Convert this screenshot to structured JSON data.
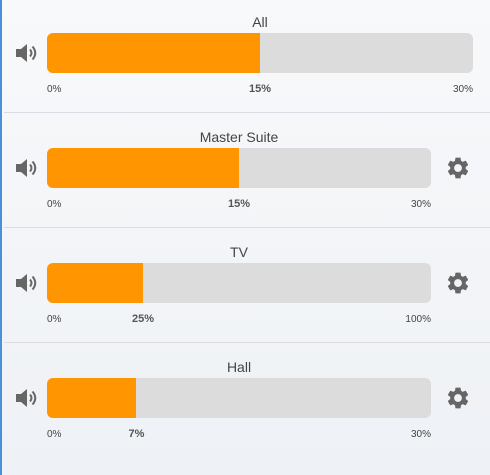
{
  "zones": [
    {
      "label": "All",
      "min_label": "0%",
      "max_label": "30%",
      "value_label": "15%",
      "level_fraction": 0.5,
      "has_settings": false
    },
    {
      "label": "Master Suite",
      "min_label": "0%",
      "max_label": "30%",
      "value_label": "15%",
      "level_fraction": 0.5,
      "has_settings": true
    },
    {
      "label": "TV",
      "min_label": "0%",
      "max_label": "100%",
      "value_label": "25%",
      "level_fraction": 0.25,
      "has_settings": true
    },
    {
      "label": "Hall",
      "min_label": "0%",
      "max_label": "30%",
      "value_label": "7%",
      "level_fraction": 0.233,
      "has_settings": true
    }
  ],
  "icons": {
    "speaker": "speaker-volume-icon",
    "settings": "gear-icon"
  },
  "colors": {
    "fill": "#ff9500",
    "track": "#dcdcdc",
    "icon": "#666666"
  }
}
